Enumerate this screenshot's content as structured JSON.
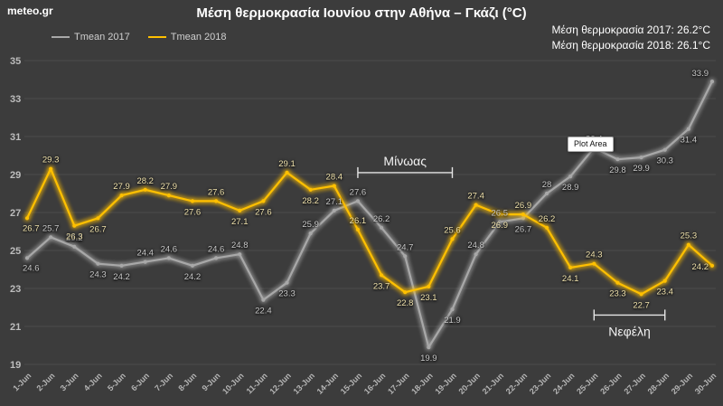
{
  "logo": "meteo.gr",
  "title": "Μέση θερμοκρασία Ιουνίου στην Αθήνα – Γκάζι (°C)",
  "stats": [
    "Μέση θερμοκρασία 2017: 26.2°C",
    "Μέση θερμοκρασία 2018: 26.1°C"
  ],
  "tooltip": "Plot Area",
  "colors": {
    "background": "#3c3c3c",
    "gridline": "#4b4b4b",
    "axis_text": "#bdbdbd",
    "title_text": "#ffffff",
    "annotation": "#e6e6e6"
  },
  "chart_data": {
    "type": "line",
    "title": "Μέση θερμοκρασία Ιουνίου στην Αθήνα – Γκάζι (°C)",
    "categories": [
      "1-Jun",
      "2-Jun",
      "3-Jun",
      "4-Jun",
      "5-Jun",
      "6-Jun",
      "7-Jun",
      "8-Jun",
      "9-Jun",
      "10-Jun",
      "11-Jun",
      "12-Jun",
      "13-Jun",
      "14-Jun",
      "15-Jun",
      "16-Jun",
      "17-Jun",
      "18-Jun",
      "19-Jun",
      "20-Jun",
      "21-Jun",
      "22-Jun",
      "23-Jun",
      "24-Jun",
      "25-Jun",
      "26-Jun",
      "27-Jun",
      "28-Jun",
      "29-Jun",
      "30-Jun"
    ],
    "series": [
      {
        "name": "Tmean 2017",
        "color": "#a8a8a8",
        "label_color": "#c9c9c9",
        "values": [
          24.6,
          25.7,
          25.2,
          24.3,
          24.2,
          24.4,
          24.6,
          24.2,
          24.6,
          24.8,
          22.4,
          23.3,
          25.9,
          27.1,
          27.6,
          26.2,
          24.7,
          19.9,
          21.9,
          24.8,
          26.5,
          26.7,
          28,
          28.9,
          30.4,
          29.8,
          29.9,
          30.3,
          31.4,
          33.9
        ]
      },
      {
        "name": "Tmean 2018",
        "color": "#ffc000",
        "label_color": "#f0e2ac",
        "values": [
          26.7,
          29.3,
          26.3,
          26.7,
          27.9,
          28.2,
          27.9,
          27.6,
          27.6,
          27.1,
          27.6,
          29.1,
          28.2,
          28.4,
          26.1,
          23.7,
          22.8,
          23.1,
          25.6,
          27.4,
          26.9,
          26.9,
          26.2,
          24.1,
          24.3,
          23.3,
          22.7,
          23.4,
          25.3,
          24.2
        ]
      }
    ],
    "ylim": [
      19,
      35
    ],
    "yticks": [
      35,
      33,
      31,
      29,
      27,
      25,
      23,
      21,
      19
    ],
    "grid": true,
    "legend_position": "top-left",
    "annotations": [
      {
        "text": "Μίνωας",
        "from": "15-Jun",
        "to": "19-Jun",
        "level": 29.1,
        "label_side": "above"
      },
      {
        "text": "Νεφέλη",
        "from": "25-Jun",
        "to": "28-Jun",
        "level": 21.6,
        "label_side": "below"
      }
    ]
  }
}
